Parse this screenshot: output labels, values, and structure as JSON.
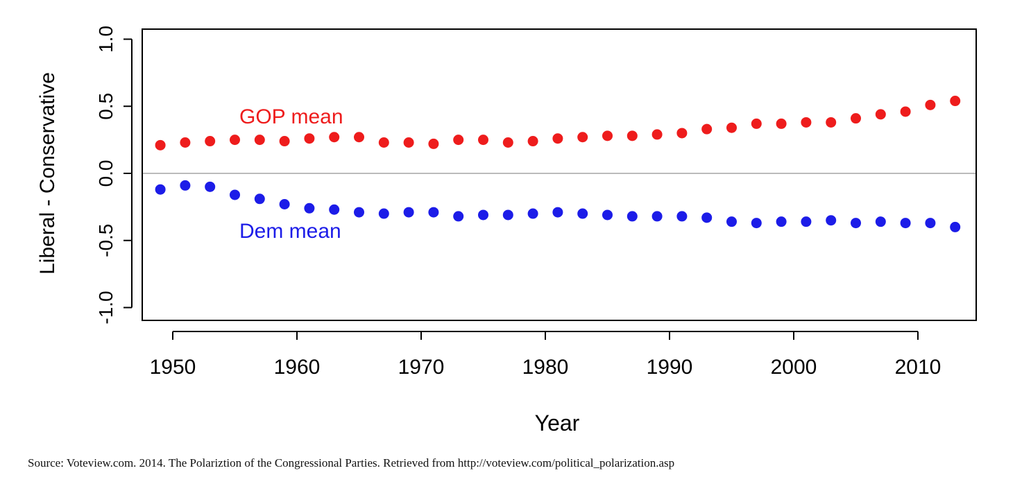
{
  "chart_data": {
    "type": "scatter",
    "title": "",
    "xlabel": "Year",
    "ylabel": "Liberal - Conservative",
    "xlim": [
      1948,
      2015
    ],
    "ylim": [
      -1.1,
      1.0
    ],
    "xticks": [
      1950,
      1960,
      1970,
      1980,
      1990,
      2000,
      2010
    ],
    "yticks": [
      1.0,
      0.5,
      0.0,
      -0.5,
      -1.0
    ],
    "ytick_labels": [
      "1.0",
      "0.5",
      "0.0",
      "-0.5",
      "-1.0"
    ],
    "reference_line": 0.0,
    "grid": false,
    "x": [
      1949,
      1951,
      1953,
      1955,
      1957,
      1959,
      1961,
      1963,
      1965,
      1967,
      1969,
      1971,
      1973,
      1975,
      1977,
      1979,
      1981,
      1983,
      1985,
      1987,
      1989,
      1991,
      1993,
      1995,
      1997,
      1999,
      2001,
      2003,
      2005,
      2007,
      2009,
      2011,
      2013
    ],
    "series": [
      {
        "name": "GOP mean",
        "color": "#ee1c1c",
        "values": [
          0.21,
          0.23,
          0.24,
          0.25,
          0.25,
          0.24,
          0.26,
          0.27,
          0.27,
          0.23,
          0.23,
          0.22,
          0.25,
          0.25,
          0.23,
          0.24,
          0.26,
          0.27,
          0.28,
          0.28,
          0.29,
          0.3,
          0.33,
          0.34,
          0.37,
          0.37,
          0.38,
          0.38,
          0.41,
          0.44,
          0.46,
          0.51,
          0.54
        ]
      },
      {
        "name": "Dem mean",
        "color": "#1c1ce8",
        "values": [
          -0.12,
          -0.09,
          -0.1,
          -0.16,
          -0.19,
          -0.23,
          -0.26,
          -0.27,
          -0.29,
          -0.3,
          -0.29,
          -0.29,
          -0.32,
          -0.31,
          -0.31,
          -0.3,
          -0.29,
          -0.3,
          -0.31,
          -0.32,
          -0.32,
          -0.32,
          -0.33,
          -0.36,
          -0.37,
          -0.36,
          -0.36,
          -0.35,
          -0.37,
          -0.36,
          -0.37,
          -0.37,
          -0.4
        ]
      }
    ]
  },
  "source": "Source: Voteview.com. 2014. The Polariztion of the Congressional Parties. Retrieved from http://voteview.com/political_polarization.asp"
}
